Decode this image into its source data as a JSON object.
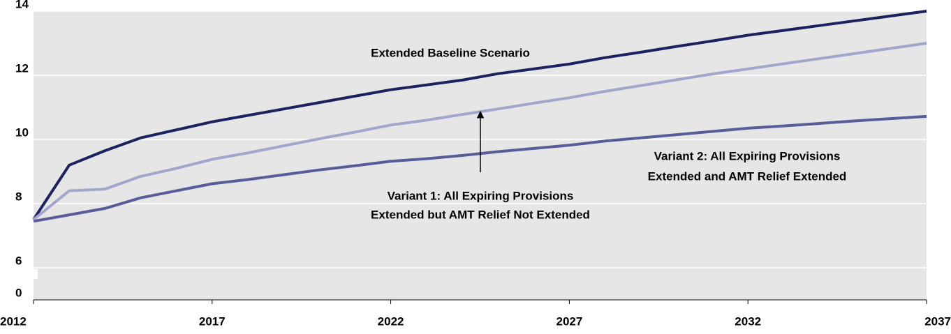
{
  "chart_data": {
    "type": "line",
    "x": [
      2012,
      2013,
      2014,
      2015,
      2016,
      2017,
      2018,
      2019,
      2020,
      2021,
      2022,
      2023,
      2024,
      2025,
      2026,
      2027,
      2028,
      2029,
      2030,
      2031,
      2032,
      2033,
      2034,
      2035,
      2036,
      2037
    ],
    "series": [
      {
        "name": "Extended Baseline Scenario",
        "color": "#1c2160",
        "values": [
          7.5,
          9.2,
          9.65,
          10.05,
          10.3,
          10.55,
          10.75,
          10.95,
          11.15,
          11.35,
          11.55,
          11.7,
          11.85,
          12.05,
          12.2,
          12.35,
          12.55,
          12.72,
          12.9,
          13.07,
          13.25,
          13.4,
          13.55,
          13.7,
          13.85,
          14.0
        ]
      },
      {
        "name": "Variant 1: All Expiring Provisions Extended but AMT Relief Not Extended",
        "color": "#a2a6cc",
        "values": [
          7.5,
          8.4,
          8.45,
          8.85,
          9.1,
          9.38,
          9.58,
          9.8,
          10.02,
          10.23,
          10.45,
          10.6,
          10.78,
          10.95,
          11.13,
          11.3,
          11.5,
          11.68,
          11.86,
          12.04,
          12.2,
          12.36,
          12.52,
          12.68,
          12.84,
          13.0
        ]
      },
      {
        "name": "Variant 2: All Expiring Provisions Extended and AMT Relief Extended",
        "color": "#585d99",
        "values": [
          7.45,
          7.65,
          7.85,
          8.18,
          8.4,
          8.62,
          8.75,
          8.9,
          9.05,
          9.18,
          9.32,
          9.4,
          9.5,
          9.62,
          9.72,
          9.82,
          9.95,
          10.05,
          10.15,
          10.25,
          10.35,
          10.42,
          10.5,
          10.58,
          10.65,
          10.72
        ]
      }
    ],
    "annotations": [
      {
        "lines": [
          "Extended Baseline Scenario"
        ]
      },
      {
        "lines": [
          "Variant 1: All Expiring Provisions",
          "Extended but AMT Relief Not Extended"
        ]
      },
      {
        "lines": [
          "Variant 2: All Expiring Provisions",
          "Extended and AMT Relief Extended"
        ]
      }
    ],
    "xlim": [
      2012,
      2037
    ],
    "xticks": [
      2012,
      2017,
      2022,
      2027,
      2032,
      2037
    ],
    "ylim": [
      0,
      14
    ],
    "yticks": [
      0,
      6,
      8,
      10,
      12,
      14
    ],
    "y_axis_break": [
      0,
      6
    ],
    "grid": true
  }
}
